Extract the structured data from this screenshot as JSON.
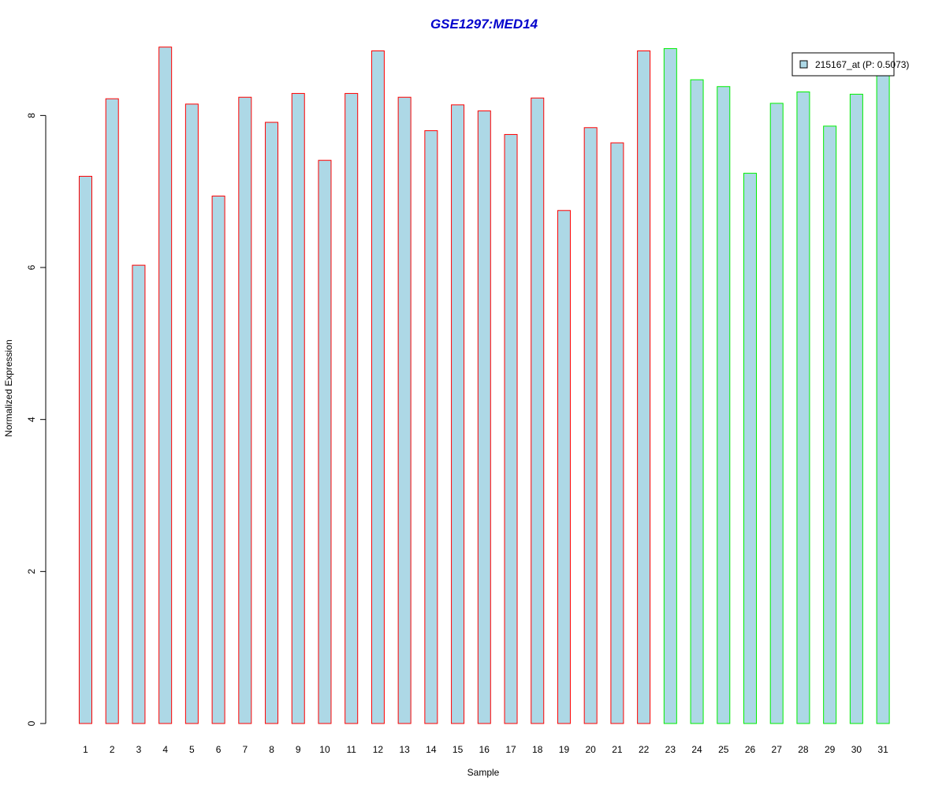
{
  "chart_data": {
    "type": "bar",
    "title": "GSE1297:MED14",
    "xlabel": "Sample",
    "ylabel": "Normalized Expression",
    "categories": [
      "1",
      "2",
      "3",
      "4",
      "5",
      "6",
      "7",
      "8",
      "9",
      "10",
      "11",
      "12",
      "13",
      "14",
      "15",
      "16",
      "17",
      "18",
      "19",
      "20",
      "21",
      "22",
      "23",
      "24",
      "25",
      "26",
      "27",
      "28",
      "29",
      "30",
      "31"
    ],
    "series": [
      {
        "name": "215167_at (P: 0.5073)",
        "values": [
          7.2,
          8.22,
          6.03,
          8.9,
          8.15,
          6.94,
          8.24,
          7.91,
          8.29,
          7.41,
          8.29,
          8.85,
          8.24,
          7.8,
          8.14,
          8.06,
          7.75,
          8.23,
          6.75,
          7.84,
          7.64,
          8.85,
          8.88,
          8.47,
          8.38,
          7.24,
          8.16,
          8.31,
          7.86,
          8.28,
          8.56
        ]
      }
    ],
    "groups": [
      {
        "samples": [
          1,
          22
        ],
        "border_color": "#ff0000"
      },
      {
        "samples": [
          23,
          31
        ],
        "border_color": "#00ee00"
      }
    ],
    "ylim": [
      0,
      9
    ],
    "yticks": [
      0,
      2,
      4,
      6,
      8
    ],
    "grid": false,
    "legend": {
      "position": "top-right",
      "fill": "#add8e6"
    },
    "colors": {
      "bar_fill": "#add8e6",
      "title": "#0000cc",
      "group1_border": "#ff0000",
      "group2_border": "#00ee00",
      "axis": "#000000"
    }
  }
}
